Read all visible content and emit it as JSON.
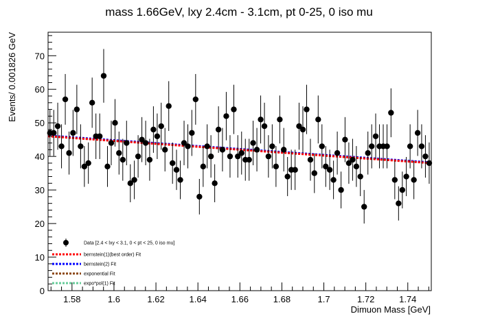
{
  "chart_data": {
    "type": "scatter",
    "title": "mass 1.66GeV, lxy 2.4cm - 3.1cm, pt 0-25, 0 iso mu",
    "xlabel": "Dimuon Mass [GeV]",
    "ylabel": "Events/ 0.001826 GeV",
    "xlim": [
      1.5686,
      1.7512
    ],
    "ylim": [
      0,
      77
    ],
    "x_ticks": [
      1.58,
      1.6,
      1.62,
      1.64,
      1.66,
      1.68,
      1.7,
      1.72,
      1.74
    ],
    "x_tick_labels": [
      "1.58",
      "1.6",
      "1.62",
      "1.64",
      "1.66",
      "1.68",
      "1.7",
      "1.72",
      "1.74"
    ],
    "y_ticks": [
      0,
      10,
      20,
      30,
      40,
      50,
      60,
      70
    ],
    "y_tick_labels": [
      "0",
      "10",
      "20",
      "30",
      "40",
      "50",
      "60",
      "70"
    ],
    "grid": false,
    "legend_position": "bottom-left",
    "series": [
      {
        "name": "Data [2.4 < lxy < 3.1, 0 < pt < 25, 0 iso mu]",
        "kind": "points_with_errors",
        "color": "#000000",
        "x": [
          1.5695,
          1.5713,
          1.5732,
          1.575,
          1.5768,
          1.5786,
          1.5805,
          1.5823,
          1.5841,
          1.5859,
          1.5878,
          1.5896,
          1.5914,
          1.5932,
          1.5951,
          1.5969,
          1.5987,
          1.6005,
          1.6024,
          1.6042,
          1.606,
          1.6078,
          1.6097,
          1.6115,
          1.6133,
          1.6151,
          1.617,
          1.6188,
          1.6206,
          1.6225,
          1.6243,
          1.6261,
          1.6279,
          1.6298,
          1.6316,
          1.6334,
          1.6352,
          1.6371,
          1.6389,
          1.6407,
          1.6425,
          1.6444,
          1.6462,
          1.648,
          1.6498,
          1.6517,
          1.6535,
          1.6553,
          1.6571,
          1.659,
          1.6608,
          1.6626,
          1.6644,
          1.6663,
          1.6681,
          1.6699,
          1.6717,
          1.6736,
          1.6754,
          1.6772,
          1.679,
          1.6809,
          1.6827,
          1.6845,
          1.6863,
          1.6882,
          1.69,
          1.6918,
          1.6936,
          1.6955,
          1.6973,
          1.6991,
          1.7009,
          1.7028,
          1.7046,
          1.7064,
          1.7082,
          1.7101,
          1.7119,
          1.7137,
          1.7155,
          1.7174,
          1.7192,
          1.721,
          1.7228,
          1.7247,
          1.7265,
          1.7283,
          1.7301,
          1.732,
          1.7338,
          1.7356,
          1.7374,
          1.7393,
          1.7411,
          1.7429,
          1.7447,
          1.7466,
          1.7484,
          1.7502
        ],
        "values": [
          47,
          47,
          49,
          43,
          57,
          41,
          47,
          54,
          43,
          37,
          38,
          56,
          46,
          46,
          64,
          37,
          44,
          50,
          41,
          39,
          44,
          32,
          33,
          40,
          45,
          44,
          39,
          48,
          46,
          49,
          42,
          55,
          38,
          36,
          33,
          44,
          43,
          47,
          57,
          28,
          37,
          43,
          40,
          32,
          48,
          42,
          52,
          40,
          54,
          40,
          41,
          39,
          39,
          44,
          42,
          51,
          49,
          40,
          43,
          37,
          51,
          42,
          34,
          36,
          36,
          49,
          48,
          54,
          39,
          35,
          51,
          43,
          37,
          36,
          33,
          41,
          30,
          45,
          38,
          39,
          37,
          34,
          25,
          41,
          43,
          46,
          43,
          43,
          43,
          53,
          33,
          26,
          30,
          34,
          43,
          33,
          47,
          43,
          40,
          38
        ]
      },
      {
        "name": "bernstein(1)(best order) Fit",
        "kind": "line",
        "color": "#ff0000",
        "line": [
          [
            1.5686,
            46.0
          ],
          [
            1.7512,
            38.0
          ]
        ]
      },
      {
        "name": "bernstein(2) Fit",
        "kind": "line",
        "color": "#0000ff",
        "line": [
          [
            1.5686,
            46.2
          ],
          [
            1.7512,
            38.2
          ]
        ]
      },
      {
        "name": "exponential Fit",
        "kind": "line",
        "color": "#8b4513",
        "line": [
          [
            1.5686,
            46.1
          ],
          [
            1.7512,
            38.1
          ]
        ]
      },
      {
        "name": "expo*pol(1) Fit",
        "kind": "line",
        "color": "#66cc99",
        "line": [
          [
            1.5686,
            46.1
          ],
          [
            1.7512,
            38.1
          ]
        ]
      }
    ]
  }
}
